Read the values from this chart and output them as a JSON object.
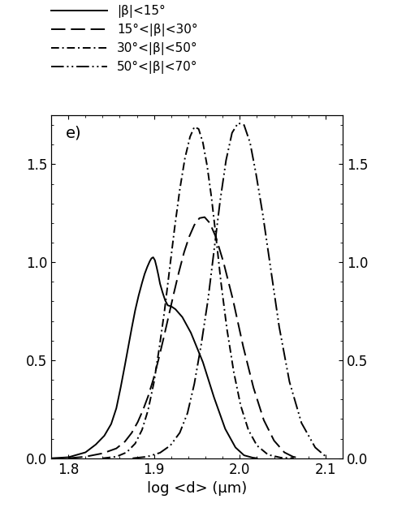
{
  "panel_label": "e)",
  "xlabel": "log <d> (μm)",
  "xlim": [
    1.78,
    2.12
  ],
  "ylim": [
    0.0,
    1.75
  ],
  "yticks": [
    0.0,
    0.5,
    1.0,
    1.5
  ],
  "xticks": [
    1.8,
    1.9,
    2.0,
    2.1
  ],
  "legend_labels": [
    "|β|<15°",
    "15°<|β|<30°",
    "30°<|β|<50°",
    "50°<|β|<70°"
  ],
  "curve1_x": [
    1.78,
    1.8,
    1.82,
    1.832,
    1.842,
    1.85,
    1.856,
    1.861,
    1.866,
    1.87,
    1.874,
    1.878,
    1.882,
    1.886,
    1.889,
    1.892,
    1.895,
    1.897,
    1.899,
    1.901,
    1.903,
    1.905,
    1.907,
    1.91,
    1.913,
    1.916,
    1.92,
    1.925,
    1.933,
    1.943,
    1.957,
    1.97,
    1.983,
    1.995,
    2.005,
    2.015,
    2.02
  ],
  "curve1_y": [
    0.0,
    0.005,
    0.03,
    0.07,
    0.115,
    0.175,
    0.255,
    0.36,
    0.475,
    0.57,
    0.665,
    0.755,
    0.83,
    0.895,
    0.94,
    0.975,
    1.005,
    1.02,
    1.025,
    1.01,
    0.975,
    0.935,
    0.89,
    0.845,
    0.805,
    0.78,
    0.775,
    0.76,
    0.72,
    0.64,
    0.49,
    0.31,
    0.15,
    0.055,
    0.015,
    0.003,
    0.0
  ],
  "curve2_x": [
    1.8,
    1.82,
    1.84,
    1.856,
    1.866,
    1.874,
    1.881,
    1.887,
    1.893,
    1.899,
    1.905,
    1.911,
    1.917,
    1.923,
    1.929,
    1.935,
    1.941,
    1.947,
    1.953,
    1.959,
    1.965,
    1.972,
    1.981,
    1.992,
    2.004,
    2.016,
    2.028,
    2.04,
    2.052,
    2.062,
    2.07
  ],
  "curve2_y": [
    0.0,
    0.008,
    0.025,
    0.05,
    0.085,
    0.13,
    0.185,
    0.245,
    0.315,
    0.4,
    0.5,
    0.61,
    0.725,
    0.84,
    0.95,
    1.05,
    1.13,
    1.19,
    1.225,
    1.23,
    1.2,
    1.13,
    1.0,
    0.81,
    0.57,
    0.36,
    0.195,
    0.09,
    0.03,
    0.008,
    0.0
  ],
  "curve3_x": [
    1.84,
    1.856,
    1.868,
    1.878,
    1.886,
    1.893,
    1.9,
    1.906,
    1.912,
    1.918,
    1.924,
    1.93,
    1.936,
    1.942,
    1.947,
    1.952,
    1.957,
    1.962,
    1.967,
    1.972,
    1.978,
    1.985,
    1.993,
    2.001,
    2.01,
    2.02,
    2.033,
    2.048,
    2.063
  ],
  "curve3_y": [
    0.0,
    0.008,
    0.03,
    0.075,
    0.145,
    0.245,
    0.39,
    0.56,
    0.745,
    0.96,
    1.175,
    1.37,
    1.53,
    1.64,
    1.69,
    1.68,
    1.61,
    1.49,
    1.33,
    1.14,
    0.9,
    0.66,
    0.44,
    0.27,
    0.145,
    0.065,
    0.018,
    0.003,
    0.0
  ],
  "curve4_x": [
    1.875,
    1.892,
    1.907,
    1.919,
    1.93,
    1.939,
    1.947,
    1.955,
    1.963,
    1.97,
    1.977,
    1.984,
    1.991,
    1.998,
    2.005,
    2.012,
    2.019,
    2.027,
    2.036,
    2.046,
    2.058,
    2.072,
    2.088,
    2.1
  ],
  "curve4_y": [
    0.0,
    0.008,
    0.028,
    0.065,
    0.13,
    0.23,
    0.38,
    0.58,
    0.81,
    1.06,
    1.31,
    1.52,
    1.66,
    1.71,
    1.7,
    1.61,
    1.45,
    1.24,
    0.97,
    0.67,
    0.39,
    0.18,
    0.055,
    0.01
  ],
  "background_color": "#ffffff",
  "line_width": 1.4
}
